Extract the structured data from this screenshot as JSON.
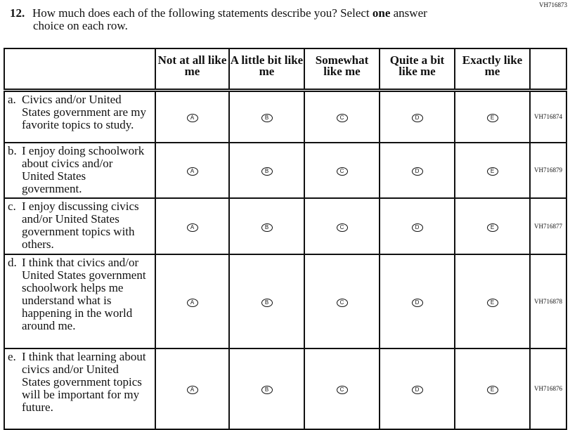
{
  "doc_id": "VH716873",
  "question": {
    "number": "12.",
    "text_before": "How much does each of the following statements describe you? Select ",
    "emphasis": "one",
    "text_after": " answer",
    "line2": "choice on each row."
  },
  "columns": [
    "Not at all like me",
    "A little bit like me",
    "Somewhat like me",
    "Quite a bit like me",
    "Exactly like me"
  ],
  "bubbles": [
    "A",
    "B",
    "C",
    "D",
    "E"
  ],
  "rows": [
    {
      "label": "a.",
      "text": "Civics and/or United States government are my favorite topics to study.",
      "id": "VH716874"
    },
    {
      "label": "b.",
      "text": "I enjoy doing schoolwork about civics and/or United States government.",
      "id": "VH716879"
    },
    {
      "label": "c.",
      "text": "I enjoy discussing civics and/or United States government topics with others.",
      "id": "VH716877"
    },
    {
      "label": "d.",
      "text": "I think that civics and/or United States government schoolwork helps me understand what is happening in the world around me.",
      "id": "VH716878"
    },
    {
      "label": "e.",
      "text": "I think that learning about civics and/or United States government topics will be important for my future.",
      "id": "VH716876"
    }
  ]
}
